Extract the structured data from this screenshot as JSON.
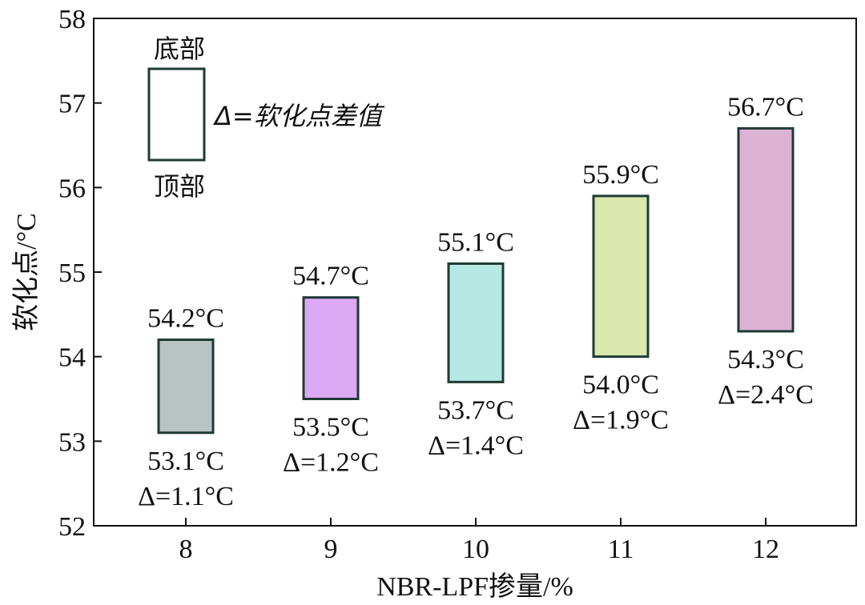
{
  "chart_data": {
    "type": "floating-bar",
    "xlabel": "NBR-LPF掺量/%",
    "ylabel": "软化点/°C",
    "ylim": [
      52,
      58
    ],
    "yticks": [
      "52",
      "53",
      "54",
      "55",
      "56",
      "57",
      "58"
    ],
    "categories": [
      "8",
      "9",
      "10",
      "11",
      "12"
    ],
    "bars": [
      {
        "category": "8",
        "top": 54.2,
        "bottom": 53.1,
        "top_label": "54.2°C",
        "bottom_label": "53.1°C",
        "delta_label": "Δ=1.1°C",
        "color": "#b8c4c2"
      },
      {
        "category": "9",
        "top": 54.7,
        "bottom": 53.5,
        "top_label": "54.7°C",
        "bottom_label": "53.5°C",
        "delta_label": "Δ=1.2°C",
        "color": "#dba8f4"
      },
      {
        "category": "10",
        "top": 55.1,
        "bottom": 53.7,
        "top_label": "55.1°C",
        "bottom_label": "53.7°C",
        "delta_label": "Δ=1.4°C",
        "color": "#b5e8e2"
      },
      {
        "category": "11",
        "top": 55.9,
        "bottom": 54.0,
        "top_label": "55.9°C",
        "bottom_label": "54.0°C",
        "delta_label": "Δ=1.9°C",
        "color": "#dae7ad"
      },
      {
        "category": "12",
        "top": 56.7,
        "bottom": 54.3,
        "top_label": "56.7°C",
        "bottom_label": "54.3°C",
        "delta_label": "Δ=2.4°C",
        "color": "#dcb2d4"
      }
    ],
    "legend": {
      "top_text": "底部",
      "bottom_text": "顶部",
      "side_text": "Δ=软化点差值"
    },
    "bar_edge_color": "#1e3a34"
  }
}
